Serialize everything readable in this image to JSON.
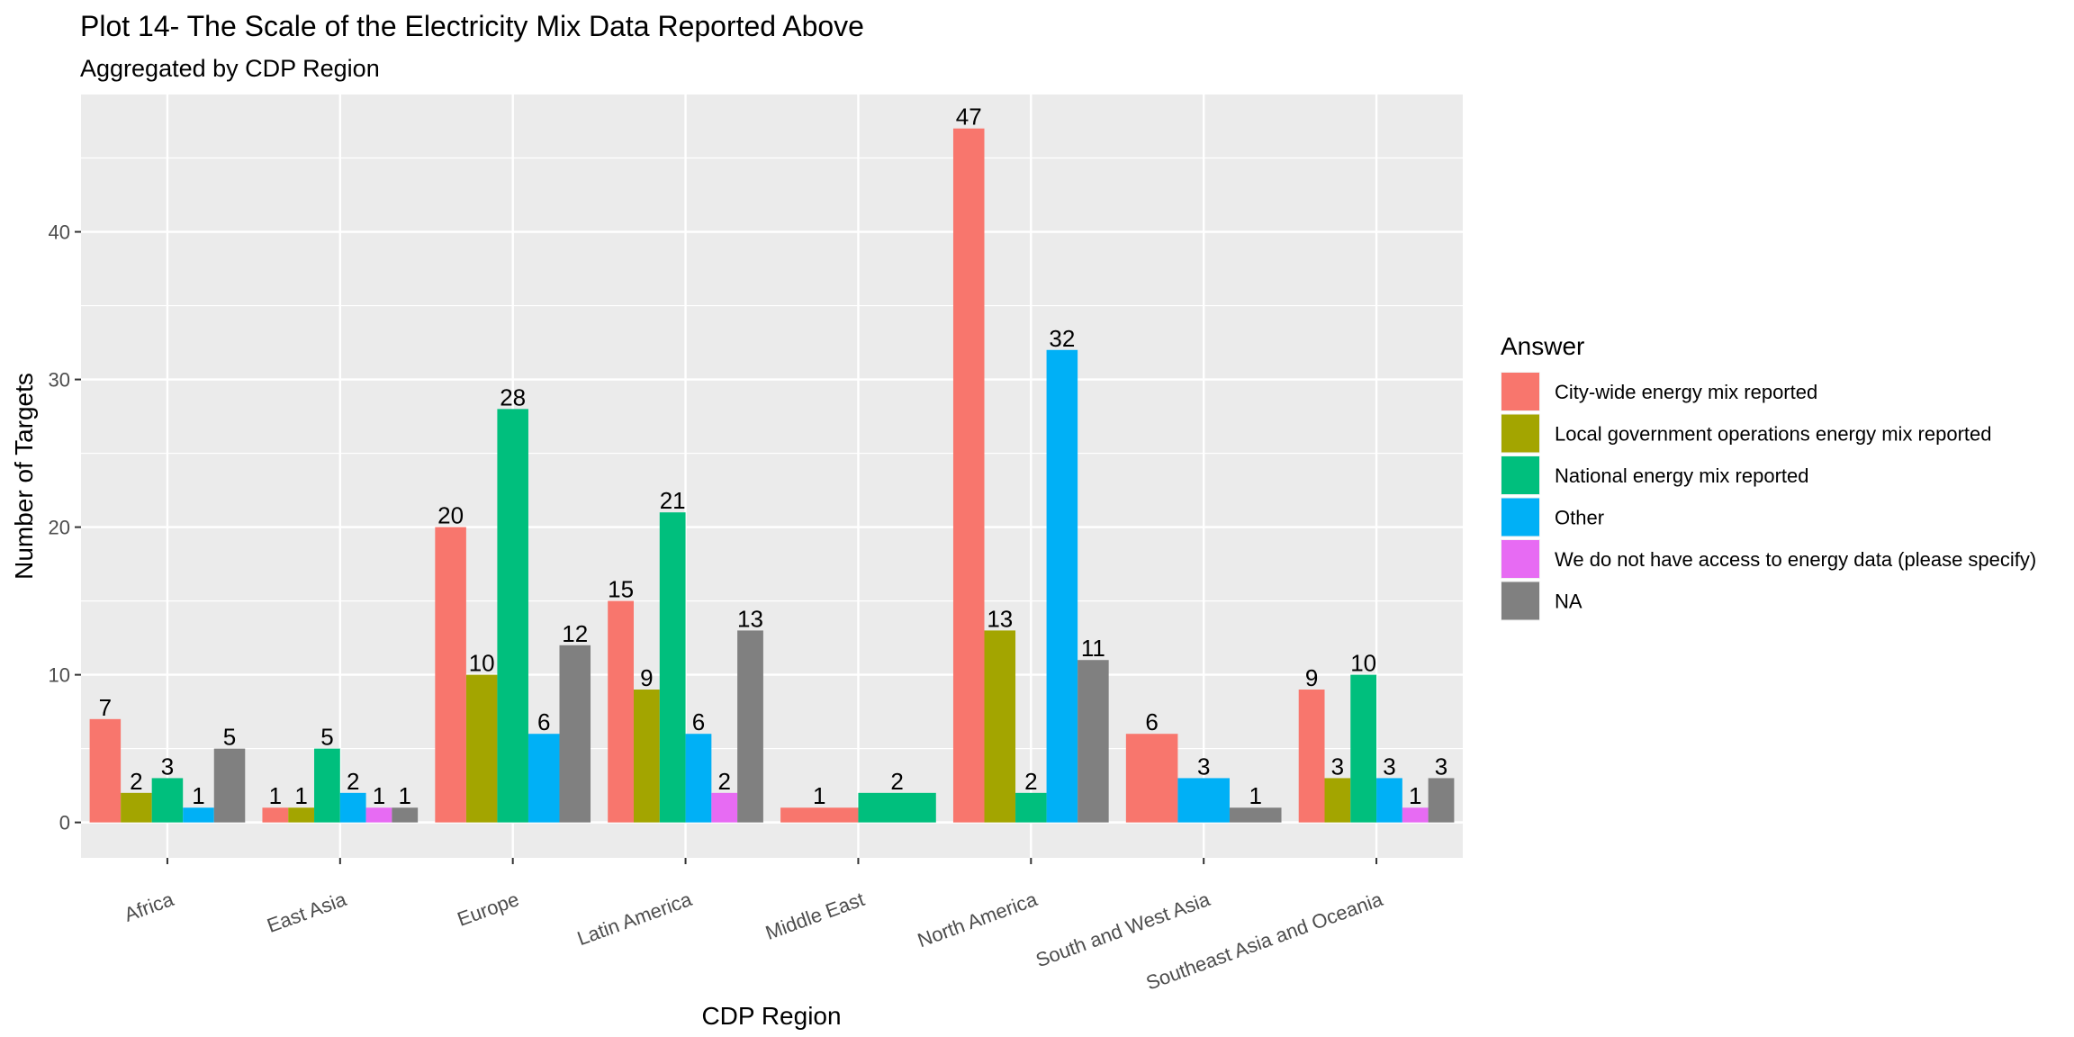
{
  "chart_data": {
    "type": "bar",
    "title": "Plot 14- The Scale of the Electricity Mix Data Reported Above",
    "subtitle": "Aggregated by CDP Region",
    "xlabel": "CDP Region",
    "ylabel": "Number of Targets",
    "ylim": [
      -2.4,
      49.3
    ],
    "yticks": [
      0,
      10,
      20,
      30,
      40
    ],
    "grid": true,
    "legend_title": "Answer",
    "legend_position": "right",
    "categories": [
      "Africa",
      "East Asia",
      "Europe",
      "Latin America",
      "Middle East",
      "North America",
      "South and West Asia",
      "Southeast Asia and Oceania"
    ],
    "series": [
      {
        "name": "City-wide energy mix reported",
        "color": "#F8766D",
        "values": [
          7,
          1,
          20,
          15,
          1,
          47,
          6,
          9
        ]
      },
      {
        "name": "Local government operations energy mix reported",
        "color": "#A3A500",
        "values": [
          2,
          1,
          10,
          9,
          null,
          13,
          null,
          3
        ]
      },
      {
        "name": "National energy mix reported",
        "color": "#00BF7D",
        "values": [
          3,
          5,
          28,
          21,
          2,
          2,
          null,
          10
        ]
      },
      {
        "name": "Other",
        "color": "#00B0F6",
        "values": [
          1,
          2,
          6,
          6,
          null,
          32,
          3,
          3
        ]
      },
      {
        "name": "We do not have access to energy data (please specify)",
        "color": "#E76BF3",
        "values": [
          null,
          1,
          null,
          2,
          null,
          null,
          null,
          1
        ]
      },
      {
        "name": "NA",
        "color": "#808080",
        "values": [
          5,
          1,
          12,
          13,
          null,
          11,
          1,
          3
        ]
      }
    ]
  }
}
